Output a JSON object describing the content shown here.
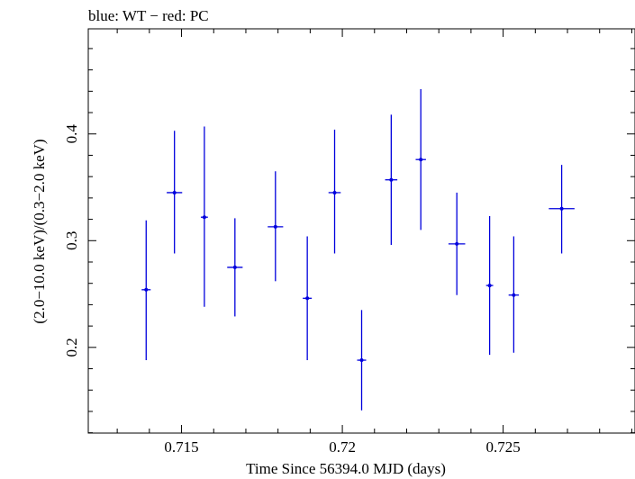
{
  "chart_data": {
    "type": "scatter",
    "title": "blue: WT − red: PC",
    "xlabel": "Time Since 56394.0 MJD (days)",
    "ylabel": "(2.0−10.0 keV)/(0.3−2.0 keV)",
    "xlim": [
      0.7121,
      0.7291
    ],
    "ylim": [
      0.1197,
      0.4985
    ],
    "x_ticks": [
      0.715,
      0.72,
      0.725
    ],
    "x_tick_labels": [
      "0.715",
      "0.72",
      "0.725"
    ],
    "y_ticks": [
      0.2,
      0.3,
      0.4
    ],
    "y_tick_labels": [
      "0.2",
      "0.3",
      "0.4"
    ],
    "grid": false,
    "color": "#0000dd",
    "series": [
      {
        "points": [
          {
            "x": 0.7139,
            "xerr": 0.00014,
            "y": 0.254,
            "ylo": 0.188,
            "yhi": 0.319
          },
          {
            "x": 0.71478,
            "xerr": 0.00024,
            "y": 0.345,
            "ylo": 0.288,
            "yhi": 0.403
          },
          {
            "x": 0.71571,
            "xerr": 0.00011,
            "y": 0.322,
            "ylo": 0.238,
            "yhi": 0.407
          },
          {
            "x": 0.71666,
            "xerr": 0.00024,
            "y": 0.275,
            "ylo": 0.229,
            "yhi": 0.321
          },
          {
            "x": 0.71792,
            "xerr": 0.00024,
            "y": 0.313,
            "ylo": 0.262,
            "yhi": 0.365
          },
          {
            "x": 0.71891,
            "xerr": 0.00014,
            "y": 0.246,
            "ylo": 0.188,
            "yhi": 0.304
          },
          {
            "x": 0.71976,
            "xerr": 0.00019,
            "y": 0.345,
            "ylo": 0.288,
            "yhi": 0.404
          },
          {
            "x": 0.7206,
            "xerr": 0.00014,
            "y": 0.188,
            "ylo": 0.141,
            "yhi": 0.235
          },
          {
            "x": 0.72152,
            "xerr": 0.00019,
            "y": 0.357,
            "ylo": 0.296,
            "yhi": 0.418
          },
          {
            "x": 0.72244,
            "xerr": 0.00016,
            "y": 0.376,
            "ylo": 0.31,
            "yhi": 0.442
          },
          {
            "x": 0.72356,
            "xerr": 0.00026,
            "y": 0.297,
            "ylo": 0.249,
            "yhi": 0.345
          },
          {
            "x": 0.72458,
            "xerr": 0.00011,
            "y": 0.258,
            "ylo": 0.193,
            "yhi": 0.323
          },
          {
            "x": 0.72533,
            "xerr": 0.00016,
            "y": 0.249,
            "ylo": 0.195,
            "yhi": 0.304
          },
          {
            "x": 0.72682,
            "xerr": 0.0004,
            "y": 0.33,
            "ylo": 0.288,
            "yhi": 0.371
          }
        ]
      }
    ]
  }
}
